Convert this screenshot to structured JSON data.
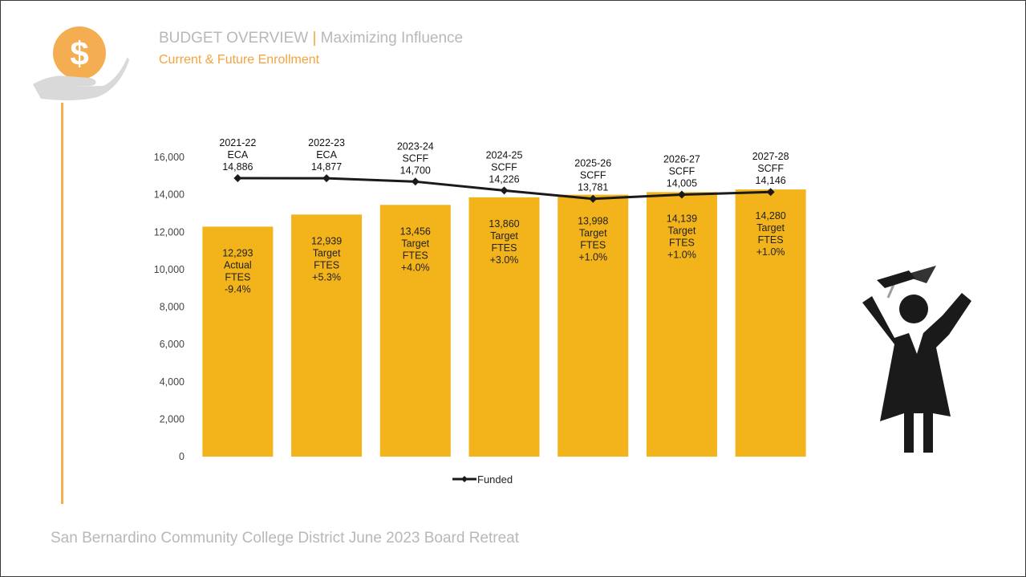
{
  "header": {
    "title_main": "BUDGET OVERVIEW",
    "title_sep": "|",
    "title_rest": "Maximizing Influence",
    "subtitle": "Current & Future Enrollment"
  },
  "footer": {
    "text": "San Bernardino Community College District June 2023 Board Retreat"
  },
  "icons": {
    "logo": "dollar-hand-icon",
    "graduate": "graduate-icon"
  },
  "colors": {
    "bar": "#F2B31B",
    "line": "#1A1A1A",
    "accent": "#F5A33B",
    "text_muted": "#B8B8B8"
  },
  "chart_data": {
    "type": "bar",
    "categories": [
      "2021-22",
      "2022-23",
      "2023-24",
      "2024-25",
      "2025-26",
      "2026-27",
      "2027-28"
    ],
    "ylim": [
      0,
      16000
    ],
    "yticks": [
      0,
      2000,
      4000,
      6000,
      8000,
      10000,
      12000,
      14000,
      16000
    ],
    "ytick_labels": [
      "0",
      "2,000",
      "4,000",
      "6,000",
      "8,000",
      "10,000",
      "12,000",
      "14,000",
      "16,000"
    ],
    "grid": false,
    "series": [
      {
        "type": "bar",
        "values": [
          12293,
          12939,
          13456,
          13860,
          13998,
          14139,
          14280
        ],
        "labels": [
          [
            "12,293",
            "Actual",
            "FTES",
            "-9.4%"
          ],
          [
            "12,939",
            "Target",
            "FTES",
            "+5.3%"
          ],
          [
            "13,456",
            "Target",
            "FTES",
            "+4.0%"
          ],
          [
            "13,860",
            "Target",
            "FTES",
            "+3.0%"
          ],
          [
            "13,998",
            "Target",
            "FTES",
            "+1.0%"
          ],
          [
            "14,139",
            "Target",
            "FTES",
            "+1.0%"
          ],
          [
            "14,280",
            "Target",
            "FTES",
            "+1.0%"
          ]
        ]
      },
      {
        "type": "line",
        "name": "Funded",
        "values": [
          14886,
          14877,
          14700,
          14226,
          13781,
          14005,
          14146
        ],
        "labels": [
          [
            "2021-22",
            "ECA",
            "14,886"
          ],
          [
            "2022-23",
            "ECA",
            "14,877"
          ],
          [
            "2023-24",
            "SCFF",
            "14,700"
          ],
          [
            "2024-25",
            "SCFF",
            "14,226"
          ],
          [
            "2025-26",
            "SCFF",
            "13,781"
          ],
          [
            "2026-27",
            "SCFF",
            "14,005"
          ],
          [
            "2027-28",
            "SCFF",
            "14,146"
          ]
        ]
      }
    ],
    "legend": {
      "position": "bottom"
    }
  }
}
